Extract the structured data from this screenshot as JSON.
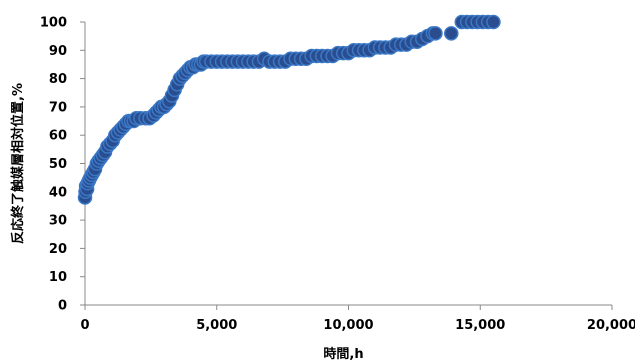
{
  "chart_data": {
    "type": "scatter",
    "title": "",
    "xlabel": "時間,h",
    "ylabel": "反応終了触媒層相対位置,%",
    "xlim": [
      0,
      20000
    ],
    "ylim": [
      0,
      100
    ],
    "x_ticks": [
      "0",
      "5,000",
      "10,000",
      "15,000",
      "20,000"
    ],
    "y_ticks": [
      "0",
      "10",
      "20",
      "30",
      "40",
      "50",
      "60",
      "70",
      "80",
      "90",
      "100"
    ],
    "grid": false,
    "legend": "none",
    "marker_color": "#2a4d8f",
    "marker_edge_color": "#3a78c6",
    "series": [
      {
        "points": [
          [
            0,
            38
          ],
          [
            20,
            40
          ],
          [
            40,
            42
          ],
          [
            80,
            41
          ],
          [
            100,
            43
          ],
          [
            150,
            44
          ],
          [
            200,
            45
          ],
          [
            260,
            46
          ],
          [
            320,
            47
          ],
          [
            380,
            48
          ],
          [
            450,
            50
          ],
          [
            520,
            51
          ],
          [
            600,
            52
          ],
          [
            680,
            53
          ],
          [
            760,
            54
          ],
          [
            850,
            56
          ],
          [
            950,
            57
          ],
          [
            1050,
            58
          ],
          [
            1150,
            60
          ],
          [
            1250,
            61
          ],
          [
            1350,
            62
          ],
          [
            1450,
            63
          ],
          [
            1550,
            64
          ],
          [
            1650,
            65
          ],
          [
            1750,
            65
          ],
          [
            1850,
            65
          ],
          [
            1950,
            66
          ],
          [
            2100,
            66
          ],
          [
            2300,
            66
          ],
          [
            2450,
            66
          ],
          [
            2600,
            67
          ],
          [
            2700,
            68
          ],
          [
            2800,
            69
          ],
          [
            2900,
            70
          ],
          [
            3000,
            70
          ],
          [
            3100,
            71
          ],
          [
            3200,
            72
          ],
          [
            3300,
            74
          ],
          [
            3400,
            76
          ],
          [
            3500,
            78
          ],
          [
            3600,
            80
          ],
          [
            3700,
            81
          ],
          [
            3800,
            82
          ],
          [
            3900,
            83
          ],
          [
            4000,
            84
          ],
          [
            4100,
            84
          ],
          [
            4200,
            85
          ],
          [
            4300,
            85
          ],
          [
            4400,
            85
          ],
          [
            4500,
            86
          ],
          [
            4600,
            86
          ],
          [
            4800,
            86
          ],
          [
            5000,
            86
          ],
          [
            5200,
            86
          ],
          [
            5400,
            86
          ],
          [
            5600,
            86
          ],
          [
            5800,
            86
          ],
          [
            6000,
            86
          ],
          [
            6200,
            86
          ],
          [
            6400,
            86
          ],
          [
            6600,
            86
          ],
          [
            6800,
            87
          ],
          [
            7000,
            86
          ],
          [
            7200,
            86
          ],
          [
            7400,
            86
          ],
          [
            7600,
            86
          ],
          [
            7800,
            87
          ],
          [
            8000,
            87
          ],
          [
            8200,
            87
          ],
          [
            8400,
            87
          ],
          [
            8600,
            88
          ],
          [
            8800,
            88
          ],
          [
            9000,
            88
          ],
          [
            9200,
            88
          ],
          [
            9400,
            88
          ],
          [
            9600,
            89
          ],
          [
            9800,
            89
          ],
          [
            10000,
            89
          ],
          [
            10200,
            90
          ],
          [
            10400,
            90
          ],
          [
            10600,
            90
          ],
          [
            10800,
            90
          ],
          [
            11000,
            91
          ],
          [
            11200,
            91
          ],
          [
            11400,
            91
          ],
          [
            11600,
            91
          ],
          [
            11800,
            92
          ],
          [
            12000,
            92
          ],
          [
            12200,
            92
          ],
          [
            12400,
            93
          ],
          [
            12600,
            93
          ],
          [
            12800,
            94
          ],
          [
            13000,
            95
          ],
          [
            13200,
            96
          ],
          [
            13300,
            96
          ],
          [
            13900,
            96
          ],
          [
            14300,
            100
          ],
          [
            14500,
            100
          ],
          [
            14700,
            100
          ],
          [
            14900,
            100
          ],
          [
            15100,
            100
          ],
          [
            15300,
            100
          ],
          [
            15500,
            100
          ]
        ]
      }
    ]
  }
}
